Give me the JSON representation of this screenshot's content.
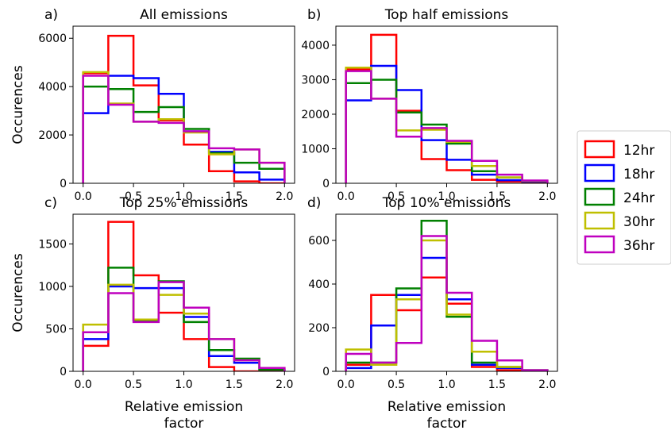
{
  "legend": [
    {
      "name": "12hr",
      "color": "#ff0000"
    },
    {
      "name": "18hr",
      "color": "#0000ff"
    },
    {
      "name": "24hr",
      "color": "#008000"
    },
    {
      "name": "30hr",
      "color": "#bfbf00"
    },
    {
      "name": "36hr",
      "color": "#bf00bf"
    }
  ],
  "chart_data": [
    {
      "type": "histogram",
      "panel_label": "a)",
      "title": "All emissions",
      "ylabel": "Occurences",
      "xlabel": "",
      "bin_edges": [
        0,
        0.25,
        0.5,
        0.75,
        1.0,
        1.25,
        1.5,
        1.75,
        2.0
      ],
      "xlim": [
        -0.1,
        2.1
      ],
      "ylim": [
        0,
        6500
      ],
      "xticks": [
        "0.0",
        "0.5",
        "1.0",
        "1.5",
        "2.0"
      ],
      "xtick_values": [
        0,
        0.5,
        1.0,
        1.5,
        2.0
      ],
      "yticks": [
        "0",
        "2000",
        "4000",
        "6000"
      ],
      "ytick_values": [
        0,
        2000,
        4000,
        6000
      ],
      "series": [
        {
          "name": "12hr",
          "values": [
            4550,
            6100,
            4050,
            2600,
            1600,
            500,
            80,
            0
          ]
        },
        {
          "name": "18hr",
          "values": [
            2900,
            4450,
            4350,
            3700,
            2150,
            1300,
            450,
            150
          ]
        },
        {
          "name": "24hr",
          "values": [
            4000,
            3900,
            2950,
            3150,
            2250,
            1250,
            850,
            600
          ]
        },
        {
          "name": "30hr",
          "values": [
            4600,
            3300,
            2550,
            2650,
            2100,
            1200,
            1400,
            850
          ]
        },
        {
          "name": "36hr",
          "values": [
            4450,
            3250,
            2550,
            2500,
            2150,
            1450,
            1400,
            850
          ]
        }
      ]
    },
    {
      "type": "histogram",
      "panel_label": "b)",
      "title": "Top half emissions",
      "ylabel": "",
      "xlabel": "",
      "bin_edges": [
        0,
        0.25,
        0.5,
        0.75,
        1.0,
        1.25,
        1.5,
        1.75,
        2.0
      ],
      "xlim": [
        -0.1,
        2.1
      ],
      "ylim": [
        0,
        4550
      ],
      "xticks": [
        "0.0",
        "0.5",
        "1.0",
        "1.5",
        "2.0"
      ],
      "xtick_values": [
        0,
        0.5,
        1.0,
        1.5,
        2.0
      ],
      "yticks": [
        "0",
        "1000",
        "2000",
        "3000",
        "4000"
      ],
      "ytick_values": [
        0,
        1000,
        2000,
        3000,
        4000
      ],
      "series": [
        {
          "name": "12hr",
          "values": [
            3300,
            4300,
            2100,
            700,
            380,
            100,
            50,
            0
          ]
        },
        {
          "name": "18hr",
          "values": [
            2400,
            3400,
            2700,
            1250,
            680,
            250,
            90,
            50
          ]
        },
        {
          "name": "24hr",
          "values": [
            2900,
            3000,
            2050,
            1700,
            1150,
            350,
            170,
            70
          ]
        },
        {
          "name": "30hr",
          "values": [
            3350,
            2450,
            1530,
            1550,
            1200,
            500,
            170,
            70
          ]
        },
        {
          "name": "36hr",
          "values": [
            3250,
            2450,
            1350,
            1600,
            1230,
            650,
            250,
            80
          ]
        }
      ]
    },
    {
      "type": "histogram",
      "panel_label": "c)",
      "title": "Top 25% emissions",
      "ylabel": "Occurences",
      "xlabel": "Relative emission factor",
      "xlabel_lines": [
        "Relative emission",
        "factor"
      ],
      "bin_edges": [
        0,
        0.25,
        0.5,
        0.75,
        1.0,
        1.25,
        1.5,
        1.75,
        2.0
      ],
      "xlim": [
        -0.1,
        2.1
      ],
      "ylim": [
        0,
        1850
      ],
      "xticks": [
        "0.0",
        "0.5",
        "1.0",
        "1.5",
        "2.0"
      ],
      "xtick_values": [
        0,
        0.5,
        1.0,
        1.5,
        2.0
      ],
      "yticks": [
        "0",
        "500",
        "1000",
        "1500"
      ],
      "ytick_values": [
        0,
        500,
        1000,
        1500
      ],
      "series": [
        {
          "name": "12hr",
          "values": [
            300,
            1760,
            1130,
            690,
            380,
            50,
            0,
            0
          ]
        },
        {
          "name": "18hr",
          "values": [
            380,
            1000,
            980,
            980,
            640,
            180,
            100,
            20
          ]
        },
        {
          "name": "24hr",
          "values": [
            460,
            1220,
            600,
            1060,
            580,
            250,
            150,
            20
          ]
        },
        {
          "name": "30hr",
          "values": [
            550,
            1020,
            610,
            900,
            680,
            380,
            130,
            40
          ]
        },
        {
          "name": "36hr",
          "values": [
            460,
            920,
            580,
            1050,
            750,
            380,
            130,
            40
          ]
        }
      ]
    },
    {
      "type": "histogram",
      "panel_label": "d)",
      "title": "Top 10% emissions",
      "ylabel": "",
      "xlabel": "Relative emission factor",
      "xlabel_lines": [
        "Relative emission",
        "factor"
      ],
      "bin_edges": [
        0,
        0.25,
        0.5,
        0.75,
        1.0,
        1.25,
        1.5,
        1.75,
        2.0
      ],
      "xlim": [
        -0.1,
        2.1
      ],
      "ylim": [
        0,
        720
      ],
      "xticks": [
        "0.0",
        "0.5",
        "1.0",
        "1.5",
        "2.0"
      ],
      "xtick_values": [
        0,
        0.5,
        1.0,
        1.5,
        2.0
      ],
      "yticks": [
        "0",
        "200",
        "400",
        "600"
      ],
      "ytick_values": [
        0,
        200,
        400,
        600
      ],
      "series": [
        {
          "name": "12hr",
          "values": [
            30,
            350,
            280,
            430,
            310,
            20,
            5,
            0
          ]
        },
        {
          "name": "18hr",
          "values": [
            15,
            210,
            350,
            520,
            330,
            30,
            15,
            5
          ]
        },
        {
          "name": "24hr",
          "values": [
            40,
            40,
            380,
            690,
            250,
            40,
            20,
            5
          ]
        },
        {
          "name": "30hr",
          "values": [
            100,
            30,
            330,
            600,
            260,
            90,
            20,
            5
          ]
        },
        {
          "name": "36hr",
          "values": [
            80,
            40,
            130,
            620,
            360,
            140,
            50,
            5
          ]
        }
      ]
    }
  ]
}
